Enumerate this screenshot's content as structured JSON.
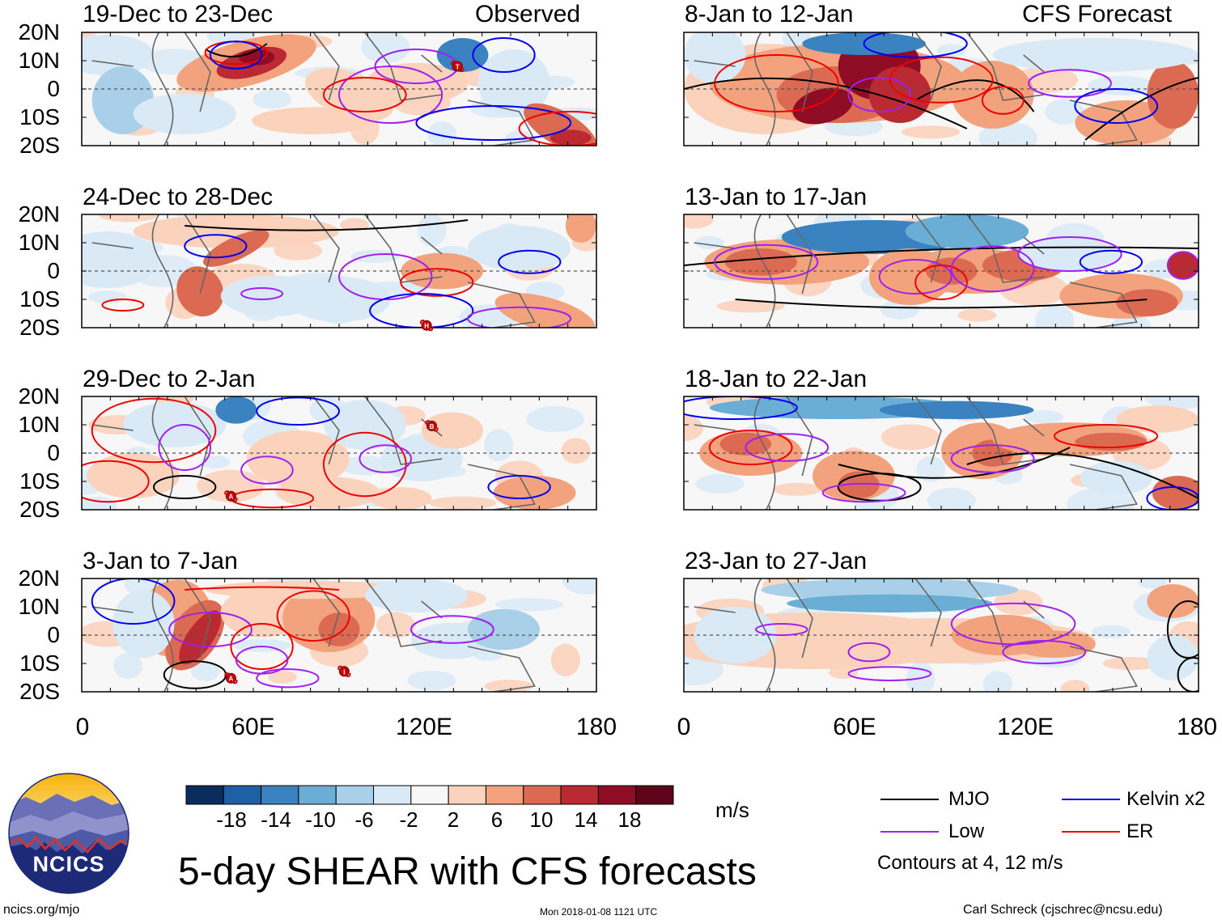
{
  "figure_title": "5-day SHEAR with CFS forecasts",
  "site_url": "ncics.org/mjo",
  "timestamp": "Mon 2018-01-08 1121 UTC",
  "author": "Carl Schreck (cjschrec@ncsu.edu)",
  "logo_text": "NCICS",
  "column_labels": {
    "observed": "Observed",
    "forecast": "CFS Forecast"
  },
  "lat_labels": [
    "20N",
    "10N",
    "0",
    "10S",
    "20S"
  ],
  "lon_labels": [
    "0",
    "60E",
    "120E",
    "180"
  ],
  "panels": [
    {
      "period": "19-Dec to 23-Dec",
      "kind": "observed"
    },
    {
      "period": "24-Dec to 28-Dec",
      "kind": "observed"
    },
    {
      "period": "29-Dec to 2-Jan",
      "kind": "observed"
    },
    {
      "period": "3-Jan to 7-Jan",
      "kind": "observed"
    },
    {
      "period": "8-Jan to 12-Jan",
      "kind": "forecast"
    },
    {
      "period": "13-Jan to 17-Jan",
      "kind": "forecast"
    },
    {
      "period": "18-Jan to 22-Jan",
      "kind": "forecast"
    },
    {
      "period": "23-Jan to 27-Jan",
      "kind": "forecast"
    }
  ],
  "colorbar": {
    "units": "m/s",
    "tick_labels": [
      "-18",
      "-14",
      "-10",
      "-6",
      "-2",
      "2",
      "6",
      "10",
      "14",
      "18"
    ],
    "colors": [
      "#0b2d5e",
      "#1f5fa3",
      "#3a82c0",
      "#6aaed6",
      "#a9d0e8",
      "#d9eaf6",
      "#f7f7f7",
      "#fbd3bd",
      "#f2a37d",
      "#dc6a52",
      "#bb2a33",
      "#8f0c25",
      "#5e0418"
    ]
  },
  "legend": {
    "items": [
      {
        "label": "MJO",
        "color": "#000000"
      },
      {
        "label": "Kelvin x2",
        "color": "#0000ee"
      },
      {
        "label": "Low",
        "color": "#a020f0"
      },
      {
        "label": "ER",
        "color": "#ee0000"
      }
    ],
    "note": "Contours at 4, 12 m/s"
  },
  "storm_markers": [
    {
      "panel": 0,
      "label": "T"
    },
    {
      "panel": 1,
      "label": "H"
    },
    {
      "panel": 2,
      "label": "B"
    },
    {
      "panel": 2,
      "label": "A"
    },
    {
      "panel": 3,
      "label": "A"
    },
    {
      "panel": 3,
      "label": "I"
    }
  ]
}
